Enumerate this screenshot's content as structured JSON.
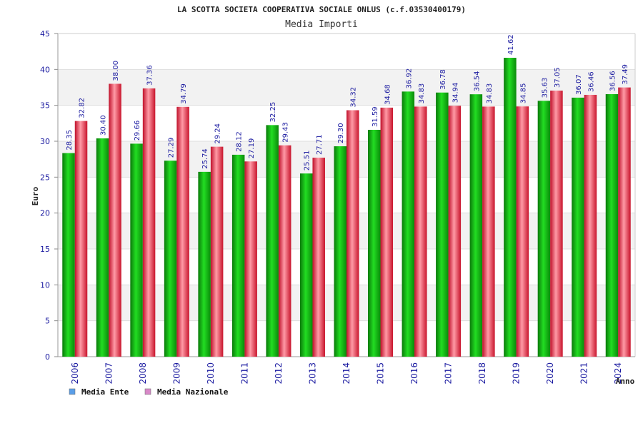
{
  "chart_data": {
    "type": "bar",
    "title": "LA SCOTTA SOCIETA COOPERATIVA SOCIALE ONLUS (c.f.03530400179)",
    "subtitle": "Media Importi",
    "xlabel": "Anno",
    "ylabel": "Euro",
    "ylim": [
      0,
      45
    ],
    "yticks": [
      0,
      5,
      10,
      15,
      20,
      25,
      30,
      35,
      40,
      45
    ],
    "grid": true,
    "legend_position": "bottom-left",
    "categories": [
      "2006",
      "2007",
      "2008",
      "2009",
      "2010",
      "2011",
      "2012",
      "2013",
      "2014",
      "2015",
      "2016",
      "2017",
      "2018",
      "2019",
      "2020",
      "2021",
      "2024"
    ],
    "series": [
      {
        "name": "Media Ente",
        "color": "#11aa11",
        "legend_color": "#5a9ee8",
        "values": [
          28.35,
          30.4,
          29.66,
          27.29,
          25.74,
          28.12,
          32.25,
          25.51,
          29.3,
          31.59,
          36.92,
          36.78,
          36.54,
          41.62,
          35.63,
          36.07,
          36.56
        ],
        "labels": [
          "28.35",
          "30.40",
          "29.66",
          "27.29",
          "25.74",
          "28.12",
          "32.25",
          "25.51",
          "29.30",
          "31.59",
          "36.92",
          "36.78",
          "36.54",
          "41.62",
          "35.63",
          "36.07",
          "36.56"
        ]
      },
      {
        "name": "Media Nazionale",
        "color": "#e03a4a",
        "legend_color": "#d888c8",
        "values": [
          32.82,
          38.0,
          37.36,
          34.79,
          29.24,
          27.19,
          29.43,
          27.71,
          34.32,
          34.68,
          34.83,
          34.94,
          34.83,
          34.85,
          37.05,
          36.46,
          37.49
        ],
        "labels": [
          "32.82",
          "38.00",
          "37.36",
          "34.79",
          "29.24",
          "27.19",
          "29.43",
          "27.71",
          "34.32",
          "34.68",
          "34.83",
          "34.94",
          "34.83",
          "34.85",
          "37.05",
          "36.46",
          "37.49"
        ]
      }
    ]
  }
}
